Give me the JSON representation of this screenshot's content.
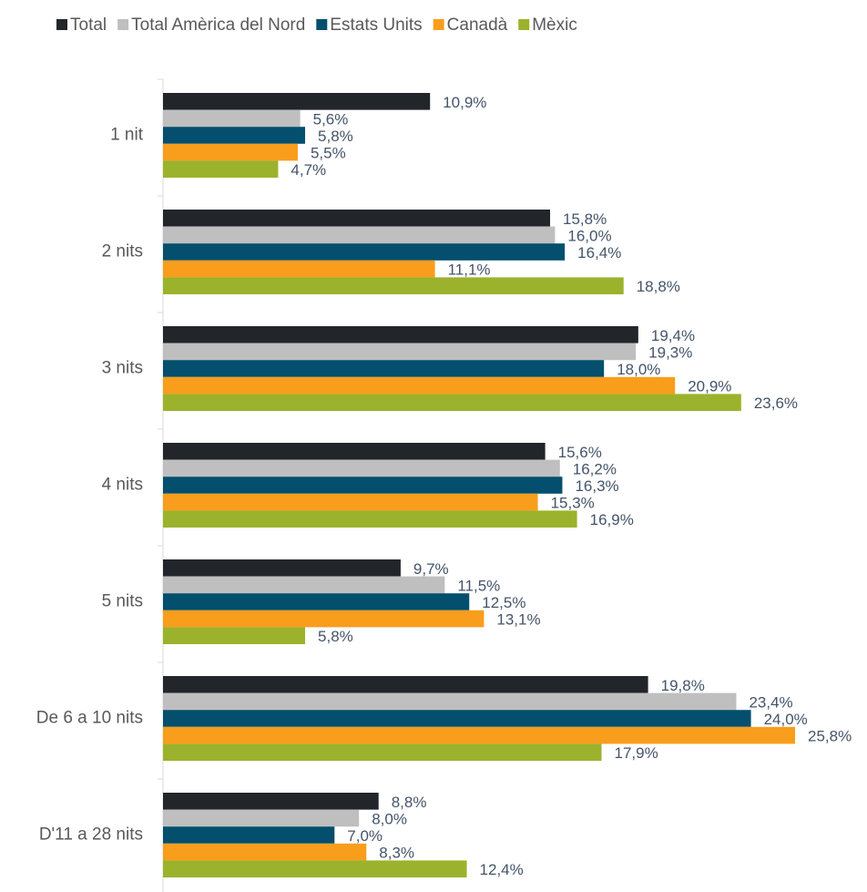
{
  "chart_data": {
    "type": "hbar",
    "categories": [
      "1 nit",
      "2 nits",
      "3 nits",
      "4 nits",
      "5 nits",
      "De 6 a 10 nits",
      "D'11 a 28 nits"
    ],
    "xlim": [
      0,
      28
    ],
    "legend": "top",
    "series": [
      {
        "name": "Total",
        "color": "#22262b",
        "values": [
          10.9,
          15.8,
          19.4,
          15.6,
          9.7,
          19.8,
          8.8
        ],
        "value_labels": [
          "10,9%",
          "15,8%",
          "19,4%",
          "15,6%",
          "9,7%",
          "19,8%",
          "8,8%"
        ]
      },
      {
        "name": "Total Amèrica del Nord",
        "color": "#bfbfbf",
        "values": [
          5.6,
          16.0,
          19.3,
          16.2,
          11.5,
          23.4,
          8.0
        ],
        "value_labels": [
          "5,6%",
          "16,0%",
          "19,3%",
          "16,2%",
          "11,5%",
          "23,4%",
          "8,0%"
        ]
      },
      {
        "name": "Estats Units",
        "color": "#034f6d",
        "values": [
          5.8,
          16.4,
          18.0,
          16.3,
          12.5,
          24.0,
          7.0
        ],
        "value_labels": [
          "5,8%",
          "16,4%",
          "18,0%",
          "16,3%",
          "12,5%",
          "24,0%",
          "7,0%"
        ]
      },
      {
        "name": "Canadà",
        "color": "#f99d1c",
        "values": [
          5.5,
          11.1,
          20.9,
          15.3,
          13.1,
          25.8,
          8.3
        ],
        "value_labels": [
          "5,5%",
          "11,1%",
          "20,9%",
          "15,3%",
          "13,1%",
          "25,8%",
          "8,3%"
        ]
      },
      {
        "name": "Mèxic",
        "color": "#9bb22c",
        "values": [
          4.7,
          18.8,
          23.6,
          16.9,
          5.8,
          17.9,
          12.4
        ],
        "value_labels": [
          "4,7%",
          "18,8%",
          "23,6%",
          "16,9%",
          "5,8%",
          "17,9%",
          "12,4%"
        ]
      }
    ]
  }
}
